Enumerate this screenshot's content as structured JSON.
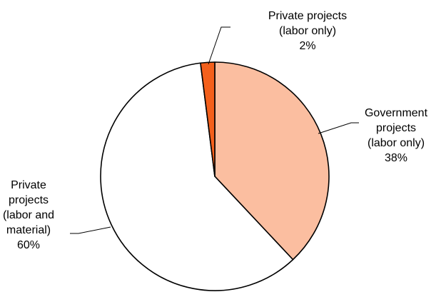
{
  "chart_data": {
    "type": "pie",
    "title": "",
    "start_angle_deg": 0,
    "direction": "clockwise",
    "slices": [
      {
        "label_lines": [
          "Government",
          "projects",
          "(labor only)",
          "38%"
        ],
        "value": 38,
        "color": "#FBBEA0"
      },
      {
        "label_lines": [
          "Private",
          "projects",
          "(labor and",
          "material)",
          "60%"
        ],
        "value": 60,
        "color": "#FFFFFF"
      },
      {
        "label_lines": [
          "Private projects",
          "(labor only)",
          "2%"
        ],
        "value": 2,
        "color": "#F3601C"
      }
    ],
    "border_color": "#000000",
    "legend": "none"
  }
}
